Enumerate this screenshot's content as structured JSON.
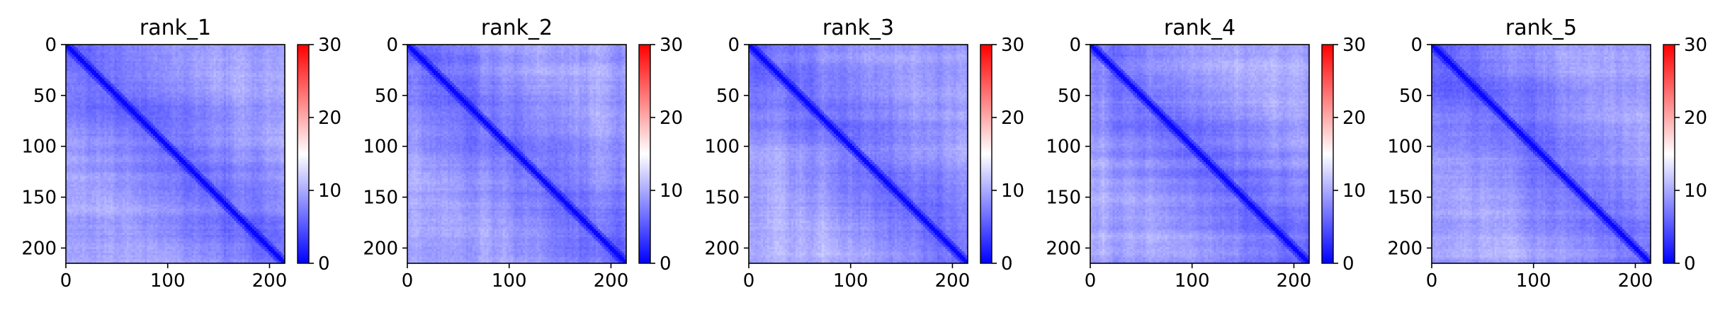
{
  "chart_data": [
    {
      "type": "heatmap",
      "title": "rank_1",
      "x_ticks": [
        "0",
        "100",
        "200"
      ],
      "y_ticks": [
        "0",
        "50",
        "100",
        "150",
        "200"
      ],
      "xlim": [
        0,
        215
      ],
      "ylim": [
        215,
        0
      ],
      "colorbar": {
        "min": 0,
        "max": 30,
        "ticks": [
          "0",
          "10",
          "20",
          "30"
        ],
        "colormap": "bwr"
      },
      "seed": 11
    },
    {
      "type": "heatmap",
      "title": "rank_2",
      "x_ticks": [
        "0",
        "100",
        "200"
      ],
      "y_ticks": [
        "0",
        "50",
        "100",
        "150",
        "200"
      ],
      "xlim": [
        0,
        215
      ],
      "ylim": [
        215,
        0
      ],
      "colorbar": {
        "min": 0,
        "max": 30,
        "ticks": [
          "0",
          "10",
          "20",
          "30"
        ],
        "colormap": "bwr"
      },
      "seed": 23
    },
    {
      "type": "heatmap",
      "title": "rank_3",
      "x_ticks": [
        "0",
        "100",
        "200"
      ],
      "y_ticks": [
        "0",
        "50",
        "100",
        "150",
        "200"
      ],
      "xlim": [
        0,
        215
      ],
      "ylim": [
        215,
        0
      ],
      "colorbar": {
        "min": 0,
        "max": 30,
        "ticks": [
          "0",
          "10",
          "20",
          "30"
        ],
        "colormap": "bwr"
      },
      "seed": 37
    },
    {
      "type": "heatmap",
      "title": "rank_4",
      "x_ticks": [
        "0",
        "100",
        "200"
      ],
      "y_ticks": [
        "0",
        "50",
        "100",
        "150",
        "200"
      ],
      "xlim": [
        0,
        215
      ],
      "ylim": [
        215,
        0
      ],
      "colorbar": {
        "min": 0,
        "max": 30,
        "ticks": [
          "0",
          "10",
          "20",
          "30"
        ],
        "colormap": "bwr"
      },
      "seed": 41
    },
    {
      "type": "heatmap",
      "title": "rank_5",
      "x_ticks": [
        "0",
        "100",
        "200"
      ],
      "y_ticks": [
        "0",
        "50",
        "100",
        "150",
        "200"
      ],
      "xlim": [
        0,
        215
      ],
      "ylim": [
        215,
        0
      ],
      "colorbar": {
        "min": 0,
        "max": 30,
        "ticks": [
          "0",
          "10",
          "20",
          "30"
        ],
        "colormap": "bwr"
      },
      "seed": 53
    }
  ]
}
